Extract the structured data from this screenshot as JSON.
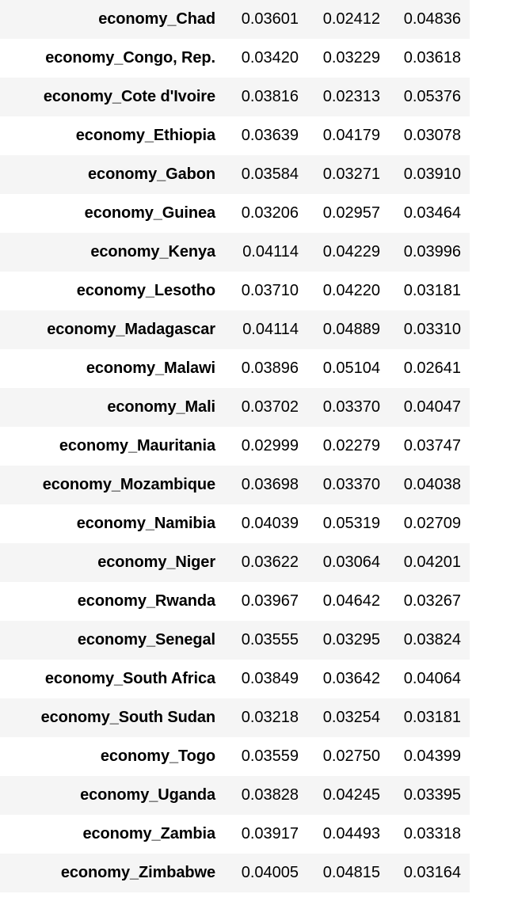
{
  "rows": [
    {
      "label": "economy_Chad",
      "v1": "0.03601",
      "v2": "0.02412",
      "v3": "0.04836"
    },
    {
      "label": "economy_Congo, Rep.",
      "v1": "0.03420",
      "v2": "0.03229",
      "v3": "0.03618"
    },
    {
      "label": "economy_Cote d'Ivoire",
      "v1": "0.03816",
      "v2": "0.02313",
      "v3": "0.05376"
    },
    {
      "label": "economy_Ethiopia",
      "v1": "0.03639",
      "v2": "0.04179",
      "v3": "0.03078"
    },
    {
      "label": "economy_Gabon",
      "v1": "0.03584",
      "v2": "0.03271",
      "v3": "0.03910"
    },
    {
      "label": "economy_Guinea",
      "v1": "0.03206",
      "v2": "0.02957",
      "v3": "0.03464"
    },
    {
      "label": "economy_Kenya",
      "v1": "0.04114",
      "v2": "0.04229",
      "v3": "0.03996"
    },
    {
      "label": "economy_Lesotho",
      "v1": "0.03710",
      "v2": "0.04220",
      "v3": "0.03181"
    },
    {
      "label": "economy_Madagascar",
      "v1": "0.04114",
      "v2": "0.04889",
      "v3": "0.03310"
    },
    {
      "label": "economy_Malawi",
      "v1": "0.03896",
      "v2": "0.05104",
      "v3": "0.02641"
    },
    {
      "label": "economy_Mali",
      "v1": "0.03702",
      "v2": "0.03370",
      "v3": "0.04047"
    },
    {
      "label": "economy_Mauritania",
      "v1": "0.02999",
      "v2": "0.02279",
      "v3": "0.03747"
    },
    {
      "label": "economy_Mozambique",
      "v1": "0.03698",
      "v2": "0.03370",
      "v3": "0.04038"
    },
    {
      "label": "economy_Namibia",
      "v1": "0.04039",
      "v2": "0.05319",
      "v3": "0.02709"
    },
    {
      "label": "economy_Niger",
      "v1": "0.03622",
      "v2": "0.03064",
      "v3": "0.04201"
    },
    {
      "label": "economy_Rwanda",
      "v1": "0.03967",
      "v2": "0.04642",
      "v3": "0.03267"
    },
    {
      "label": "economy_Senegal",
      "v1": "0.03555",
      "v2": "0.03295",
      "v3": "0.03824"
    },
    {
      "label": "economy_South Africa",
      "v1": "0.03849",
      "v2": "0.03642",
      "v3": "0.04064"
    },
    {
      "label": "economy_South Sudan",
      "v1": "0.03218",
      "v2": "0.03254",
      "v3": "0.03181"
    },
    {
      "label": "economy_Togo",
      "v1": "0.03559",
      "v2": "0.02750",
      "v3": "0.04399"
    },
    {
      "label": "economy_Uganda",
      "v1": "0.03828",
      "v2": "0.04245",
      "v3": "0.03395"
    },
    {
      "label": "economy_Zambia",
      "v1": "0.03917",
      "v2": "0.04493",
      "v3": "0.03318"
    },
    {
      "label": "economy_Zimbabwe",
      "v1": "0.04005",
      "v2": "0.04815",
      "v3": "0.03164"
    }
  ],
  "colors": {
    "stripe": "#f5f5f5",
    "background": "#ffffff",
    "text": "#000000"
  }
}
